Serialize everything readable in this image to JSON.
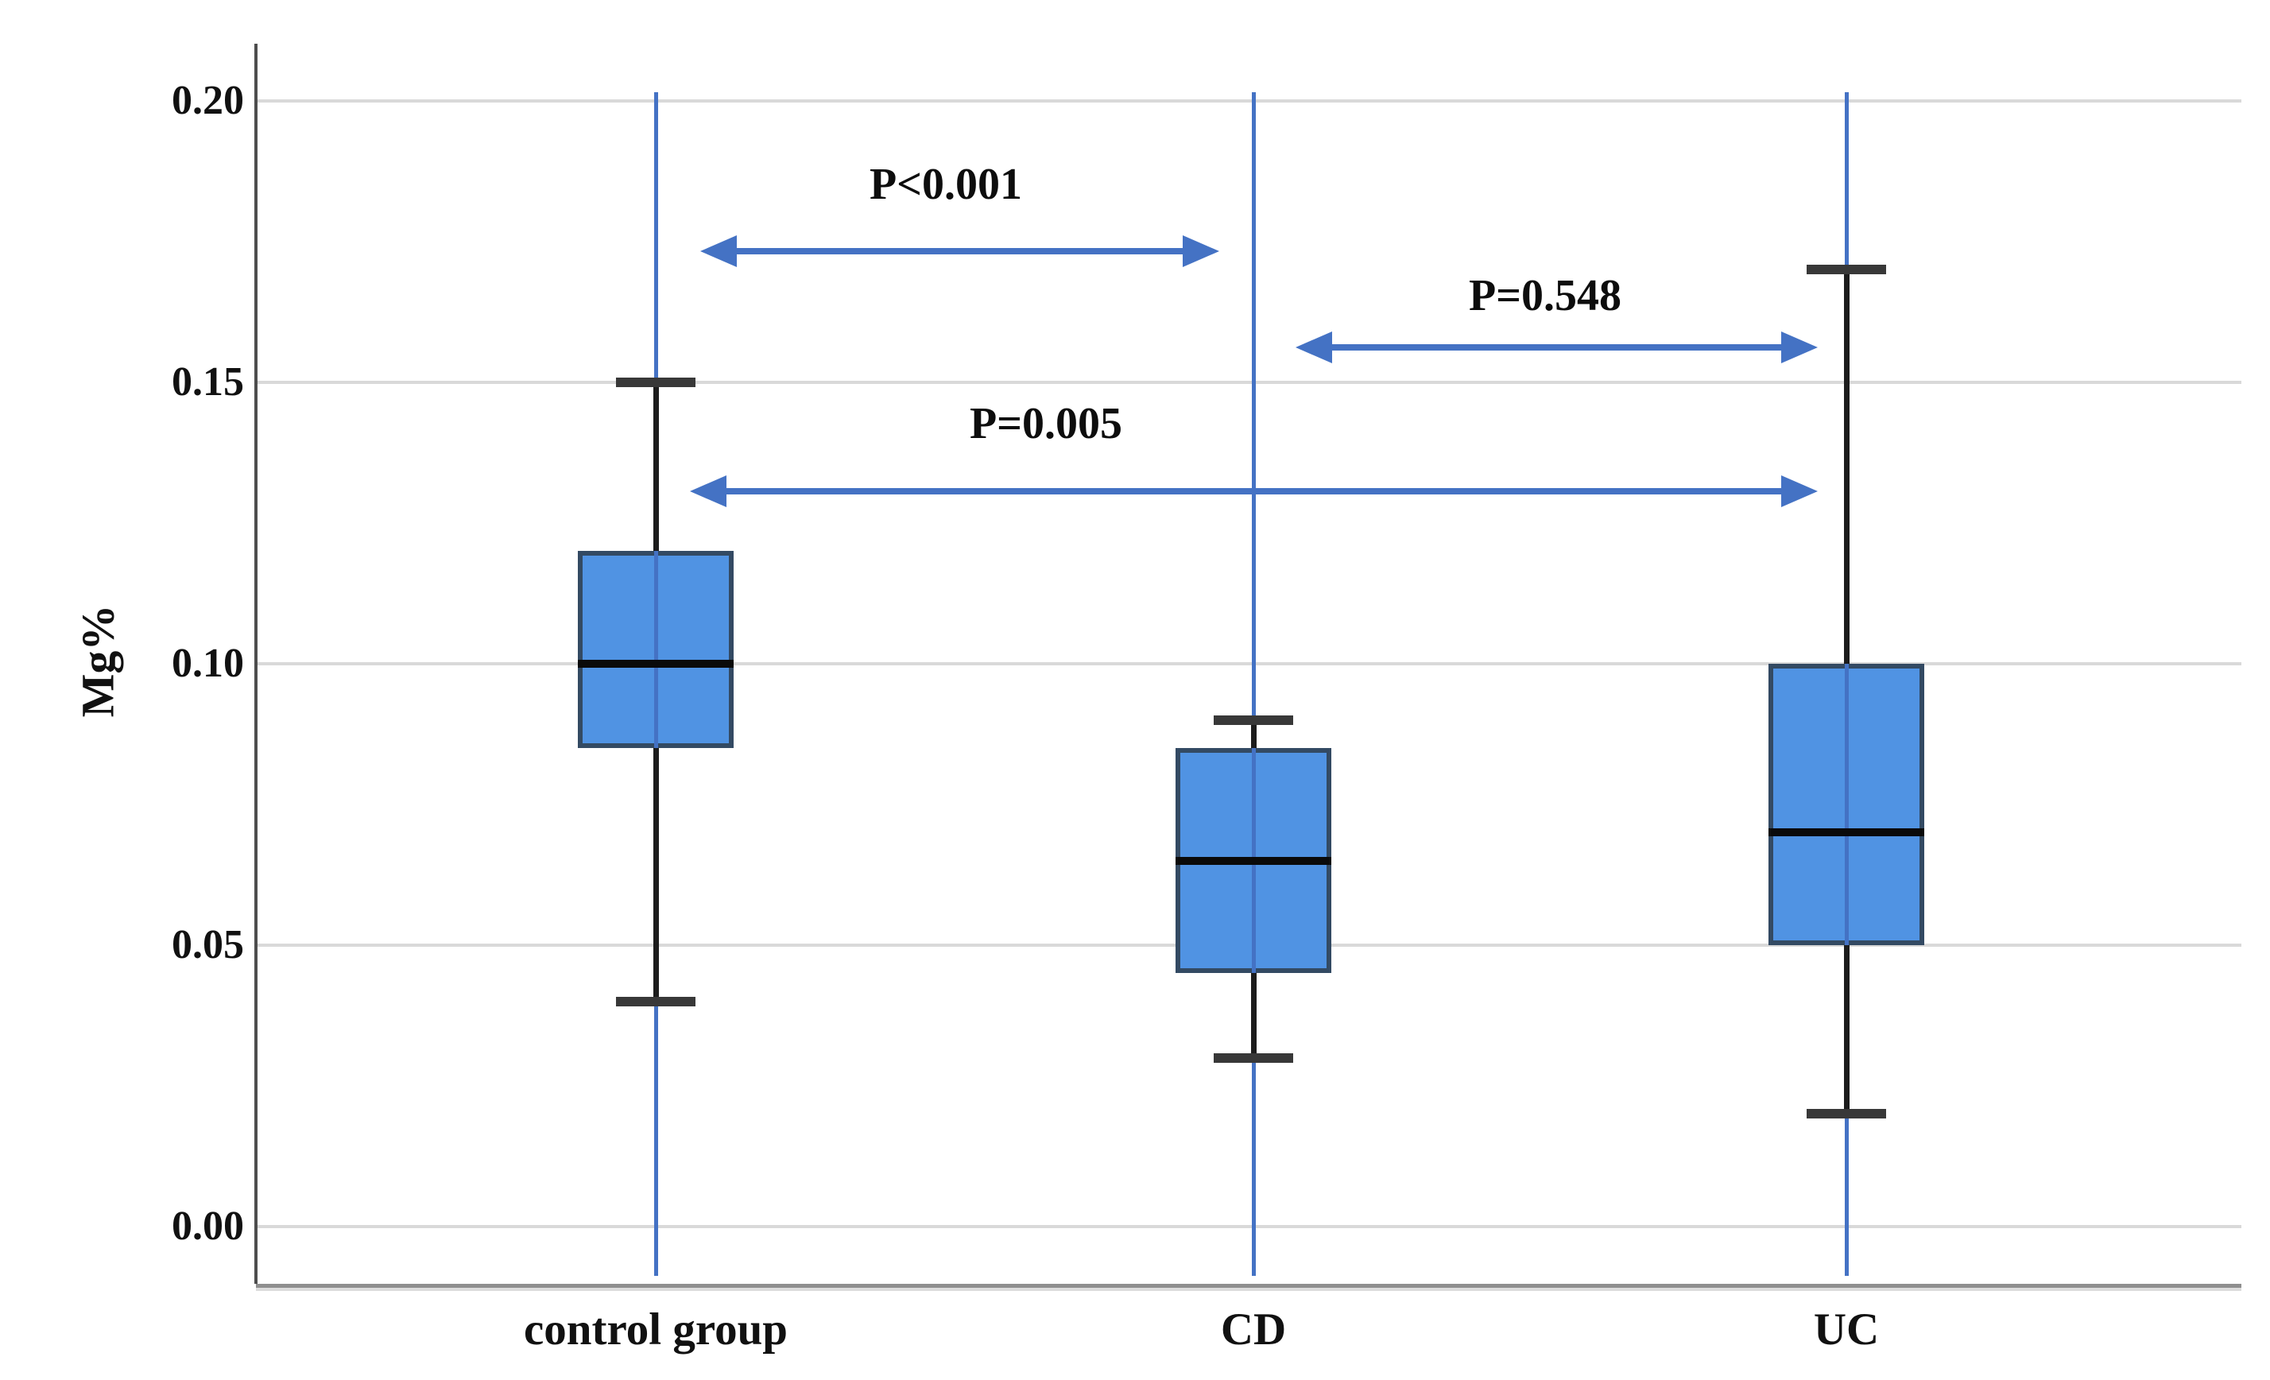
{
  "figure": {
    "background": "#ffffff",
    "accent_blue": "#4472c4",
    "box_fill": "#5093e3",
    "box_border": "#334a63",
    "gridline_color": "#d9d9d9"
  },
  "chart_data": {
    "type": "box",
    "title": "",
    "xlabel": "",
    "ylabel": "Mg%",
    "ylim": [
      0,
      0.21
    ],
    "grid": true,
    "legend": false,
    "y_ticks": [
      {
        "label": "0.20",
        "value": 0.2
      },
      {
        "label": "0.15",
        "value": 0.15
      },
      {
        "label": "0.10",
        "value": 0.1
      },
      {
        "label": "0.05",
        "value": 0.05
      },
      {
        "label": "0.00",
        "value": 0.0
      }
    ],
    "categories": [
      "control group",
      "CD",
      "UC"
    ],
    "series": [
      {
        "name": "control group",
        "whisker_low": 0.04,
        "q1": 0.085,
        "median": 0.1,
        "q3": 0.12,
        "whisker_high": 0.15
      },
      {
        "name": "CD",
        "whisker_low": 0.03,
        "q1": 0.045,
        "median": 0.065,
        "q3": 0.085,
        "whisker_high": 0.09
      },
      {
        "name": "UC",
        "whisker_low": 0.02,
        "q1": 0.05,
        "median": 0.07,
        "q3": 0.1,
        "whisker_high": 0.17
      }
    ],
    "annotations": [
      {
        "label": "P<0.001",
        "between": [
          "control group",
          "CD"
        ]
      },
      {
        "label": "P=0.548",
        "between": [
          "CD",
          "UC"
        ]
      },
      {
        "label": "P=0.005",
        "between": [
          "control group",
          "UC"
        ]
      }
    ]
  }
}
